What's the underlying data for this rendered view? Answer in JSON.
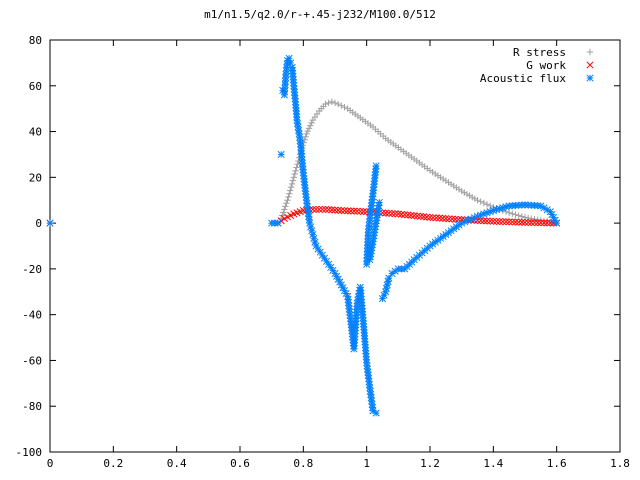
{
  "chart_data": {
    "type": "scatter",
    "title": "m1/n1.5/q2.0/r-+.45-j232/M100.0/512",
    "xlabel": "",
    "ylabel": "",
    "xlim": [
      0,
      1.8
    ],
    "ylim": [
      -100,
      80
    ],
    "x_ticks": [
      "0",
      "0.2",
      "0.4",
      "0.6",
      "0.8",
      "1",
      "1.2",
      "1.4",
      "1.6",
      "1.8"
    ],
    "y_ticks": [
      "80",
      "60",
      "40",
      "20",
      "0",
      "-20",
      "-40",
      "-60",
      "-80",
      "-100"
    ],
    "legend_position": "top-right",
    "grid": false,
    "series": [
      {
        "name": "R stress",
        "marker": "+",
        "color": "#a0a0a0",
        "points": [
          [
            0,
            0
          ],
          [
            0.7,
            0
          ],
          [
            0.72,
            0
          ],
          [
            0.73,
            2
          ],
          [
            0.75,
            10
          ],
          [
            0.77,
            20
          ],
          [
            0.79,
            30
          ],
          [
            0.81,
            39
          ],
          [
            0.83,
            45
          ],
          [
            0.85,
            49
          ],
          [
            0.87,
            52
          ],
          [
            0.89,
            53
          ],
          [
            0.91,
            52
          ],
          [
            0.94,
            50
          ],
          [
            0.98,
            46
          ],
          [
            1.02,
            42
          ],
          [
            1.06,
            37
          ],
          [
            1.1,
            33
          ],
          [
            1.15,
            28
          ],
          [
            1.2,
            23
          ],
          [
            1.25,
            18.5
          ],
          [
            1.3,
            14
          ],
          [
            1.35,
            10
          ],
          [
            1.4,
            7
          ],
          [
            1.45,
            4.5
          ],
          [
            1.5,
            2.5
          ],
          [
            1.55,
            1.2
          ],
          [
            1.58,
            0.5
          ],
          [
            1.6,
            0
          ]
        ]
      },
      {
        "name": "G work",
        "marker": "x",
        "color": "#ff0000",
        "points": [
          [
            0,
            0
          ],
          [
            0.72,
            0
          ],
          [
            0.74,
            2
          ],
          [
            0.77,
            4
          ],
          [
            0.8,
            5.5
          ],
          [
            0.83,
            6
          ],
          [
            0.87,
            6
          ],
          [
            0.92,
            5.5
          ],
          [
            1.0,
            5
          ],
          [
            1.1,
            4
          ],
          [
            1.2,
            2.5
          ],
          [
            1.3,
            1.5
          ],
          [
            1.4,
            0.8
          ],
          [
            1.5,
            0.3
          ],
          [
            1.6,
            0
          ]
        ]
      },
      {
        "name": "Acoustic flux",
        "marker": "*",
        "color": "#0080ff",
        "points": [
          [
            0,
            0
          ],
          [
            0.7,
            0
          ],
          [
            0.72,
            0
          ],
          [
            0.73,
            30
          ],
          [
            0.735,
            58
          ],
          [
            0.74,
            56
          ],
          [
            0.745,
            65
          ],
          [
            0.75,
            71
          ],
          [
            0.755,
            72
          ],
          [
            0.76,
            70
          ],
          [
            0.765,
            68
          ],
          [
            0.77,
            60
          ],
          [
            0.775,
            53
          ],
          [
            0.78,
            45
          ],
          [
            0.79,
            36
          ],
          [
            0.8,
            22
          ],
          [
            0.81,
            10
          ],
          [
            0.82,
            0
          ],
          [
            0.83,
            -5
          ],
          [
            0.84,
            -10
          ],
          [
            0.86,
            -14
          ],
          [
            0.88,
            -18
          ],
          [
            0.9,
            -22
          ],
          [
            0.92,
            -27
          ],
          [
            0.94,
            -32
          ],
          [
            0.95,
            -43
          ],
          [
            0.96,
            -55
          ],
          [
            0.97,
            -35
          ],
          [
            0.98,
            -28
          ],
          [
            0.99,
            -44
          ],
          [
            1.0,
            -61
          ],
          [
            1.01,
            -72
          ],
          [
            1.02,
            -82
          ],
          [
            1.03,
            -83
          ],
          [
            1.03,
            25
          ],
          [
            1.02,
            13
          ],
          [
            1.01,
            2
          ],
          [
            1.005,
            -4
          ],
          [
            1.0,
            -18
          ],
          [
            1.01,
            -16
          ],
          [
            1.04,
            9
          ],
          [
            1.05,
            -33
          ],
          [
            1.06,
            -30
          ],
          [
            1.07,
            -24
          ],
          [
            1.08,
            -22
          ],
          [
            1.1,
            -20
          ],
          [
            1.12,
            -20
          ],
          [
            1.15,
            -16
          ],
          [
            1.2,
            -10
          ],
          [
            1.25,
            -5
          ],
          [
            1.3,
            0
          ],
          [
            1.35,
            3
          ],
          [
            1.4,
            5.5
          ],
          [
            1.45,
            7.5
          ],
          [
            1.5,
            8
          ],
          [
            1.55,
            7.5
          ],
          [
            1.58,
            5
          ],
          [
            1.6,
            0
          ]
        ]
      }
    ]
  }
}
